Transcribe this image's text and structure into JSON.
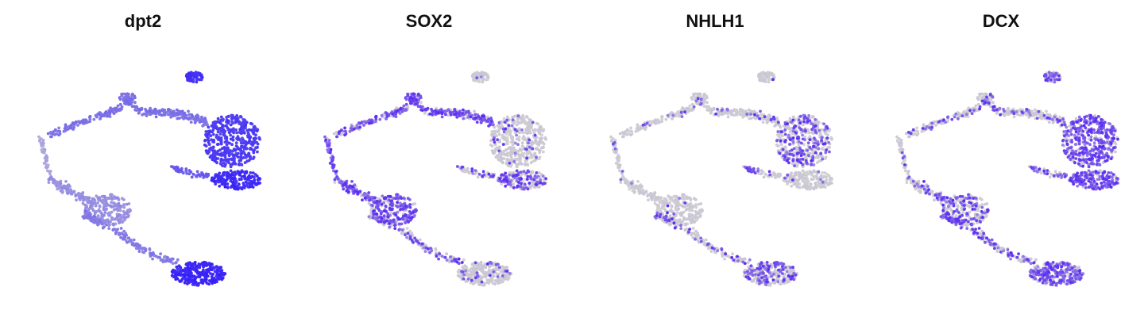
{
  "chart_data": [
    {
      "type": "scatter",
      "title": "dpt2",
      "xlabel": "",
      "ylabel": "",
      "grid": false,
      "axes": false,
      "legend": "none",
      "low_color": "#d3d3d3",
      "high_color": "#1a00ff",
      "note": "expression shown as color intensity per cell",
      "region_levels": {
        "top_island": 0.75,
        "upper_arc": 0.45,
        "left_tip": 0.2,
        "left_body": 0.3,
        "middle_blob": 0.3,
        "mid_stream": 0.4,
        "bottom_tail": 0.8,
        "top_right_cluster": 0.7,
        "right_lower_cluster": 0.78,
        "middle_link": 0.55
      }
    },
    {
      "type": "scatter",
      "title": "SOX2",
      "xlabel": "",
      "ylabel": "",
      "grid": false,
      "axes": false,
      "legend": "none",
      "low_color": "#d3d3d3",
      "high_color": "#5a2cf5",
      "region_levels": {
        "top_island": 0.08,
        "upper_arc": 0.7,
        "left_tip": 0.8,
        "left_body": 0.75,
        "middle_blob": 0.75,
        "mid_stream": 0.35,
        "bottom_tail": 0.1,
        "top_right_cluster": 0.1,
        "right_lower_cluster": 0.45,
        "middle_link": 0.3
      }
    },
    {
      "type": "scatter",
      "title": "NHLH1",
      "xlabel": "",
      "ylabel": "",
      "grid": false,
      "axes": false,
      "legend": "none",
      "low_color": "#d3d3d3",
      "high_color": "#5a2cf5",
      "region_levels": {
        "top_island": 0.02,
        "upper_arc": 0.1,
        "left_tip": 0.05,
        "left_body": 0.05,
        "middle_blob": 0.05,
        "mid_stream": 0.3,
        "bottom_tail": 0.35,
        "top_right_cluster": 0.4,
        "right_lower_cluster": 0.05,
        "middle_link": 0.2
      }
    },
    {
      "type": "scatter",
      "title": "DCX",
      "xlabel": "",
      "ylabel": "",
      "grid": false,
      "axes": false,
      "legend": "none",
      "low_color": "#d3d3d3",
      "high_color": "#5a2cf5",
      "region_levels": {
        "top_island": 0.55,
        "upper_arc": 0.25,
        "left_tip": 0.2,
        "left_body": 0.3,
        "middle_blob": 0.35,
        "mid_stream": 0.5,
        "bottom_tail": 0.6,
        "top_right_cluster": 0.75,
        "right_lower_cluster": 0.8,
        "middle_link": 0.55
      }
    }
  ]
}
